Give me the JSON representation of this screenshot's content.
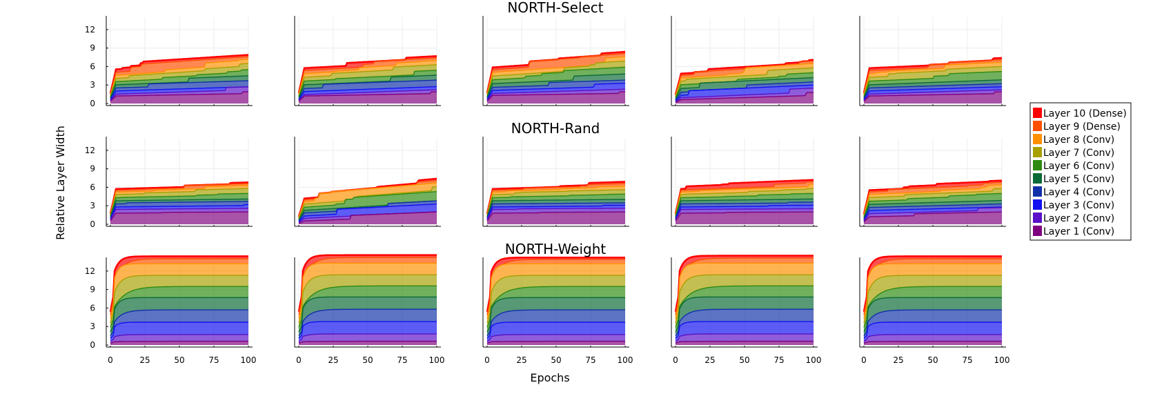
{
  "figure": {
    "row_titles": [
      "NORTH-Select",
      "NORTH-Rand",
      "NORTH-Weight"
    ],
    "ylabel": "Relative Layer Width",
    "xlabel": "Epochs",
    "xticks": [
      "0",
      "25",
      "50",
      "75",
      "100"
    ],
    "yticks": [
      "0",
      "3",
      "6",
      "9",
      "12"
    ]
  },
  "colors": [
    "#7f007f",
    "#5a10c8",
    "#1010f0",
    "#1030a8",
    "#0a6a35",
    "#2e8a10",
    "#a8a000",
    "#ff9000",
    "#ff5000",
    "#ff0000"
  ],
  "legend": {
    "placement": "right",
    "entries": [
      "Layer 10 (Dense)",
      "Layer 9 (Dense)",
      "Layer 8 (Conv)",
      "Layer 7 (Conv)",
      "Layer 6 (Conv)",
      "Layer 5 (Conv)",
      "Layer 4 (Conv)",
      "Layer 3 (Conv)",
      "Layer 2 (Conv)",
      "Layer 1 (Conv)"
    ]
  },
  "chart_data": {
    "type": "area",
    "stacked": true,
    "xlim": [
      0,
      100
    ],
    "ylim": [
      0,
      14
    ],
    "grid": true,
    "series_names": [
      "Layer 1 (Conv)",
      "Layer 2 (Conv)",
      "Layer 3 (Conv)",
      "Layer 4 (Conv)",
      "Layer 5 (Conv)",
      "Layer 6 (Conv)",
      "Layer 7 (Conv)",
      "Layer 8 (Conv)",
      "Layer 9 (Dense)",
      "Layer 10 (Dense)"
    ],
    "rows": [
      {
        "title": "NORTH-Select",
        "runs": [
          {
            "start": [
              1.2,
              1.5,
              2.0,
              2.5,
              3.0,
              3.5,
              4.0,
              4.5,
              5.0,
              5.5
            ],
            "end": [
              1.9,
              2.7,
              3.2,
              3.7,
              4.5,
              5.5,
              6.5,
              7.2,
              7.6,
              7.9
            ]
          },
          {
            "start": [
              1.2,
              1.4,
              1.9,
              2.4,
              3.0,
              3.6,
              4.2,
              4.8,
              5.3,
              5.7
            ],
            "end": [
              1.9,
              2.8,
              3.3,
              3.8,
              4.6,
              5.4,
              6.3,
              7.0,
              7.4,
              7.7
            ]
          },
          {
            "start": [
              1.3,
              1.6,
              2.1,
              2.6,
              3.2,
              3.8,
              4.4,
              5.0,
              5.4,
              5.8
            ],
            "end": [
              1.9,
              2.8,
              3.3,
              3.8,
              4.8,
              5.9,
              6.9,
              7.6,
              8.1,
              8.4
            ]
          },
          {
            "start": [
              0.6,
              0.9,
              1.3,
              1.8,
              2.4,
              3.0,
              3.6,
              4.1,
              4.5,
              4.8
            ],
            "end": [
              1.8,
              2.5,
              3.0,
              3.5,
              4.2,
              5.0,
              5.8,
              6.5,
              6.9,
              7.1
            ]
          },
          {
            "start": [
              1.2,
              1.5,
              2.0,
              2.5,
              3.0,
              3.6,
              4.2,
              4.8,
              5.3,
              5.7
            ],
            "end": [
              1.9,
              2.7,
              3.2,
              3.7,
              4.4,
              5.2,
              6.0,
              6.7,
              7.1,
              7.4
            ]
          }
        ]
      },
      {
        "title": "NORTH-Rand",
        "runs": [
          {
            "start": [
              1.8,
              2.4,
              2.8,
              3.3,
              3.8,
              4.3,
              4.8,
              5.2,
              5.5,
              5.7
            ],
            "end": [
              2.0,
              2.7,
              3.2,
              3.7,
              4.3,
              5.0,
              5.8,
              6.3,
              6.6,
              6.8
            ]
          },
          {
            "start": [
              0.5,
              0.9,
              1.3,
              1.8,
              2.2,
              2.7,
              3.2,
              3.6,
              3.9,
              4.1
            ],
            "end": [
              2.0,
              2.8,
              3.3,
              3.8,
              4.5,
              5.3,
              6.1,
              6.7,
              7.1,
              7.4
            ]
          },
          {
            "start": [
              1.8,
              2.4,
              2.8,
              3.3,
              3.8,
              4.3,
              4.8,
              5.2,
              5.5,
              5.7
            ],
            "end": [
              2.0,
              2.6,
              3.1,
              3.6,
              4.2,
              4.9,
              5.6,
              6.2,
              6.6,
              6.9
            ]
          },
          {
            "start": [
              1.8,
              2.4,
              2.8,
              3.3,
              3.8,
              4.3,
              4.8,
              5.2,
              5.5,
              5.7
            ],
            "end": [
              2.0,
              2.6,
              3.1,
              3.6,
              4.3,
              5.0,
              5.8,
              6.5,
              6.9,
              7.2
            ]
          },
          {
            "start": [
              1.2,
              1.7,
              2.2,
              2.7,
              3.2,
              3.7,
              4.3,
              4.8,
              5.2,
              5.5
            ],
            "end": [
              2.0,
              2.7,
              3.2,
              3.7,
              4.3,
              5.0,
              5.8,
              6.4,
              6.8,
              7.1
            ]
          }
        ]
      },
      {
        "title": "NORTH-Weight",
        "runs": [
          {
            "start": [
              0.5,
              1.0,
              1.8,
              2.5,
              3.5,
              4.8,
              6.0,
              7.2,
              8.2,
              9.0
            ],
            "end": [
              0.6,
              1.7,
              3.7,
              5.7,
              7.7,
              9.5,
              11.3,
              13.2,
              14.0,
              14.4
            ]
          },
          {
            "start": [
              0.5,
              1.0,
              1.8,
              2.5,
              3.5,
              4.8,
              6.0,
              7.2,
              8.2,
              9.0
            ],
            "end": [
              0.6,
              1.8,
              3.8,
              5.8,
              7.8,
              9.6,
              11.4,
              13.3,
              14.2,
              14.6
            ]
          },
          {
            "start": [
              0.5,
              1.0,
              1.8,
              2.5,
              3.5,
              4.8,
              6.0,
              7.2,
              8.2,
              9.0
            ],
            "end": [
              0.6,
              1.7,
              3.7,
              5.7,
              7.7,
              9.5,
              11.3,
              13.2,
              13.9,
              14.2
            ]
          },
          {
            "start": [
              0.5,
              1.0,
              1.8,
              2.5,
              3.5,
              4.8,
              6.0,
              7.2,
              8.2,
              9.0
            ],
            "end": [
              0.6,
              1.8,
              3.8,
              5.8,
              7.8,
              9.6,
              11.4,
              13.3,
              14.1,
              14.5
            ]
          },
          {
            "start": [
              0.5,
              1.0,
              1.8,
              2.5,
              3.5,
              4.8,
              6.0,
              7.2,
              8.2,
              9.0
            ],
            "end": [
              0.6,
              1.7,
              3.7,
              5.7,
              7.7,
              9.5,
              11.3,
              13.2,
              14.0,
              14.4
            ]
          }
        ]
      }
    ]
  }
}
